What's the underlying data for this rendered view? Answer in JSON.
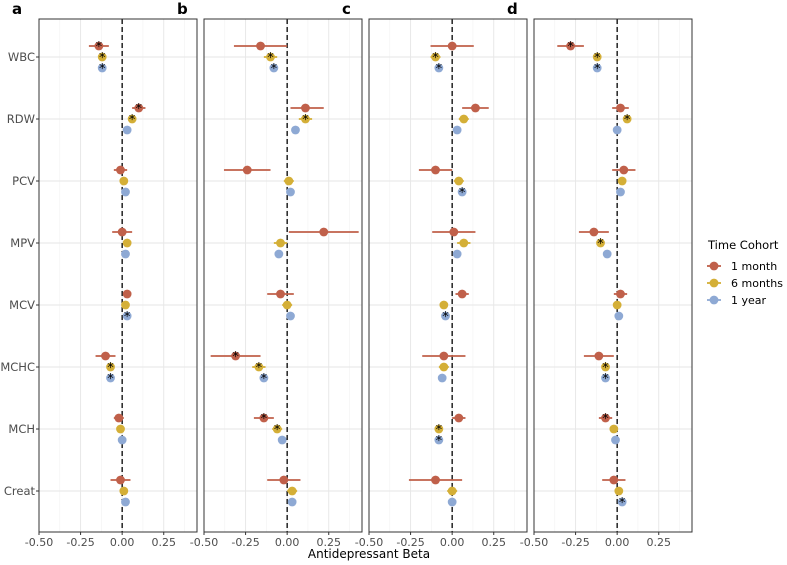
{
  "chart_data": {
    "type": "scatter",
    "subtype": "forest-plot",
    "xlabel": "Antidepressant Beta",
    "xlim": [
      -0.5,
      0.45
    ],
    "x_ticks": [
      "-0.50",
      "-0.25",
      "0.00",
      "0.25"
    ],
    "categories": [
      "WBC",
      "RDW",
      "PCV",
      "MPV",
      "MCV",
      "MCHC",
      "MCH",
      "Creat"
    ],
    "reference_line": 0,
    "grid": true,
    "legend": {
      "title": "Time Cohort",
      "position": "right",
      "entries": [
        {
          "name": "1 month",
          "color": "#C0604A"
        },
        {
          "name": "6 months",
          "color": "#D4AF37"
        },
        {
          "name": "1 year",
          "color": "#8EA9D4"
        }
      ]
    },
    "significance_marker": "*",
    "panels": [
      {
        "label": "a",
        "series": [
          {
            "name": "1 month",
            "estimate": [
              -0.14,
              0.1,
              -0.01,
              0.0,
              0.03,
              -0.1,
              -0.02,
              -0.01
            ],
            "lower": [
              -0.2,
              0.06,
              -0.05,
              -0.06,
              0.01,
              -0.16,
              -0.05,
              -0.07
            ],
            "upper": [
              -0.08,
              0.14,
              0.03,
              0.06,
              0.05,
              -0.04,
              0.01,
              0.05
            ],
            "significant": [
              true,
              true,
              false,
              false,
              false,
              false,
              false,
              false
            ]
          },
          {
            "name": "6 months",
            "estimate": [
              -0.12,
              0.06,
              0.01,
              0.03,
              0.02,
              -0.07,
              -0.01,
              0.01
            ],
            "lower": [
              -0.14,
              0.04,
              -0.01,
              0.01,
              0.0,
              -0.09,
              -0.03,
              -0.01
            ],
            "upper": [
              -0.1,
              0.08,
              0.03,
              0.05,
              0.04,
              -0.05,
              0.01,
              0.03
            ],
            "significant": [
              true,
              true,
              false,
              false,
              false,
              true,
              false,
              false
            ]
          },
          {
            "name": "1 year",
            "estimate": [
              -0.12,
              0.03,
              0.02,
              0.02,
              0.03,
              -0.07,
              0.0,
              0.02
            ],
            "lower": [
              -0.13,
              0.02,
              0.01,
              0.01,
              0.02,
              -0.08,
              -0.01,
              0.01
            ],
            "upper": [
              -0.11,
              0.04,
              0.03,
              0.03,
              0.04,
              -0.06,
              0.01,
              0.03
            ],
            "significant": [
              true,
              false,
              false,
              false,
              true,
              true,
              false,
              false
            ]
          }
        ]
      },
      {
        "label": "b",
        "series": [
          {
            "name": "1 month",
            "estimate": [
              -0.16,
              0.11,
              -0.24,
              0.22,
              -0.04,
              -0.31,
              -0.14,
              -0.02
            ],
            "lower": [
              -0.32,
              0.02,
              -0.38,
              0.01,
              -0.12,
              -0.46,
              -0.2,
              -0.12
            ],
            "upper": [
              0.0,
              0.22,
              -0.1,
              0.43,
              0.04,
              -0.16,
              -0.08,
              0.08
            ],
            "significant": [
              false,
              false,
              false,
              false,
              false,
              true,
              true,
              false
            ]
          },
          {
            "name": "6 months",
            "estimate": [
              -0.1,
              0.11,
              0.01,
              -0.04,
              0.0,
              -0.17,
              -0.06,
              0.03
            ],
            "lower": [
              -0.14,
              0.07,
              -0.02,
              -0.08,
              -0.03,
              -0.21,
              -0.09,
              0.0
            ],
            "upper": [
              -0.06,
              0.15,
              0.04,
              0.0,
              0.03,
              -0.13,
              -0.03,
              0.06
            ],
            "significant": [
              true,
              true,
              false,
              false,
              false,
              true,
              true,
              false
            ]
          },
          {
            "name": "1 year",
            "estimate": [
              -0.08,
              0.05,
              0.02,
              -0.05,
              0.02,
              -0.14,
              -0.03,
              0.03
            ],
            "lower": [
              -0.1,
              0.03,
              0.0,
              -0.07,
              0.0,
              -0.16,
              -0.05,
              0.01
            ],
            "upper": [
              -0.06,
              0.07,
              0.04,
              -0.03,
              0.04,
              -0.12,
              -0.01,
              0.05
            ],
            "significant": [
              true,
              false,
              false,
              false,
              false,
              true,
              false,
              false
            ]
          }
        ]
      },
      {
        "label": "c",
        "series": [
          {
            "name": "1 month",
            "estimate": [
              0.0,
              0.14,
              -0.1,
              0.01,
              0.06,
              -0.05,
              0.04,
              -0.1
            ],
            "lower": [
              -0.13,
              0.06,
              -0.2,
              -0.12,
              0.02,
              -0.18,
              0.0,
              -0.26
            ],
            "upper": [
              0.13,
              0.22,
              0.0,
              0.14,
              0.1,
              0.08,
              0.08,
              0.06
            ],
            "significant": [
              false,
              false,
              false,
              false,
              false,
              false,
              false,
              false
            ]
          },
          {
            "name": "6 months",
            "estimate": [
              -0.1,
              0.07,
              0.04,
              0.07,
              -0.05,
              -0.05,
              -0.08,
              0.0
            ],
            "lower": [
              -0.13,
              0.04,
              0.01,
              0.03,
              -0.07,
              -0.08,
              -0.1,
              -0.03
            ],
            "upper": [
              -0.07,
              0.1,
              0.07,
              0.11,
              -0.03,
              -0.02,
              -0.06,
              0.03
            ],
            "significant": [
              true,
              false,
              false,
              false,
              false,
              false,
              true,
              false
            ]
          },
          {
            "name": "1 year",
            "estimate": [
              -0.08,
              0.03,
              0.06,
              0.03,
              -0.04,
              -0.06,
              -0.08,
              0.0
            ],
            "lower": [
              -0.1,
              0.01,
              0.04,
              0.01,
              -0.06,
              -0.08,
              -0.1,
              -0.02
            ],
            "upper": [
              -0.06,
              0.05,
              0.08,
              0.05,
              -0.02,
              -0.04,
              -0.06,
              0.02
            ],
            "significant": [
              true,
              false,
              true,
              false,
              true,
              false,
              true,
              false
            ]
          }
        ]
      },
      {
        "label": "d",
        "series": [
          {
            "name": "1 month",
            "estimate": [
              -0.28,
              0.02,
              0.04,
              -0.14,
              0.02,
              -0.11,
              -0.07,
              -0.02
            ],
            "lower": [
              -0.36,
              -0.03,
              -0.03,
              -0.23,
              -0.02,
              -0.2,
              -0.11,
              -0.09
            ],
            "upper": [
              -0.2,
              0.07,
              0.11,
              -0.05,
              0.06,
              -0.02,
              -0.03,
              0.05
            ],
            "significant": [
              true,
              false,
              false,
              false,
              false,
              false,
              true,
              false
            ]
          },
          {
            "name": "6 months",
            "estimate": [
              -0.12,
              0.06,
              0.03,
              -0.1,
              0.0,
              -0.07,
              -0.02,
              0.01
            ],
            "lower": [
              -0.14,
              0.04,
              0.01,
              -0.12,
              -0.02,
              -0.09,
              -0.04,
              -0.01
            ],
            "upper": [
              -0.1,
              0.08,
              0.05,
              -0.08,
              0.02,
              -0.05,
              0.0,
              0.03
            ],
            "significant": [
              true,
              true,
              false,
              true,
              false,
              true,
              false,
              false
            ]
          },
          {
            "name": "1 year",
            "estimate": [
              -0.12,
              0.0,
              0.02,
              -0.06,
              0.01,
              -0.07,
              -0.01,
              0.03
            ],
            "lower": [
              -0.13,
              -0.01,
              0.01,
              -0.07,
              0.0,
              -0.08,
              -0.02,
              0.02
            ],
            "upper": [
              -0.11,
              0.01,
              0.03,
              -0.05,
              0.02,
              -0.06,
              0.0,
              0.04
            ],
            "significant": [
              true,
              false,
              false,
              false,
              false,
              true,
              false,
              true
            ]
          }
        ]
      }
    ]
  }
}
